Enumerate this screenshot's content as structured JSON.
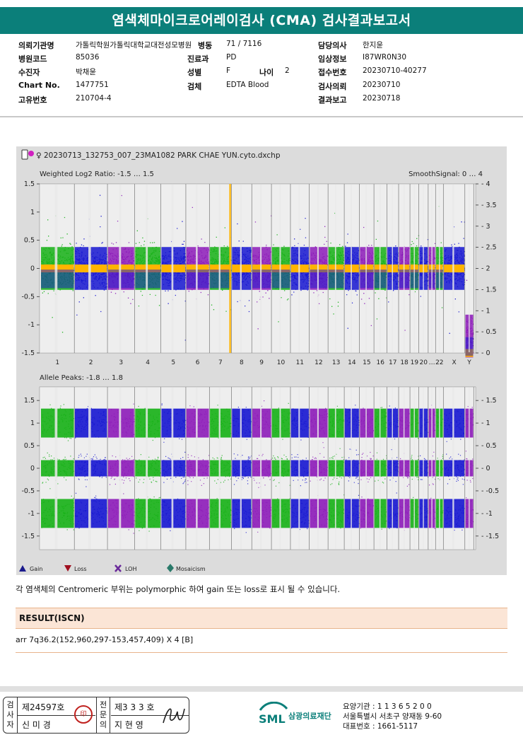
{
  "title": "염색체마이크로어레이검사 (CMA) 검사결과보고서",
  "info": {
    "institution_label": "의뢰기관명",
    "institution_value": "가톨릭학원가톨릭대학교대전성모병원",
    "ward_label": "병동",
    "ward_value": "71 / 7116",
    "doctor_label": "담당의사",
    "doctor_value": "한지윤",
    "hospital_code_label": "병원코드",
    "hospital_code_value": "85036",
    "department_label": "진료과",
    "department_value": "PD",
    "clinical_label": "임상정보",
    "clinical_value": "I87WR0N30",
    "patient_label": "수진자",
    "patient_value": "박채윤",
    "sex_label": "성별",
    "sex_value": "F",
    "age_label": "나이",
    "age_value": "2",
    "receipt_label": "접수번호",
    "receipt_value": "20230710-40277",
    "chart_label": "Chart No.",
    "chart_value": "1477751",
    "specimen_label": "검체",
    "specimen_value": "EDTA Blood",
    "request_label": "검사의뢰",
    "request_value": "20230710",
    "unique_label": "고유번호",
    "unique_value": "210704-4",
    "report_label": "결과보고",
    "report_value": "20230718"
  },
  "chart_header": {
    "filename": "20230713_132753_007_23MA1082 PARK CHAE YUN.cyto.dxchp",
    "sex_symbol": "♀"
  },
  "colors": {
    "green": "#15b015",
    "blue": "#1515d0",
    "purple": "#8c1ab8",
    "orange": "#ffb400",
    "teal": "#0b7f7a"
  },
  "chart_data": [
    {
      "type": "scatter",
      "title": "Weighted Log2 Ratio: -1.5 … 1.5",
      "right_title": "SmoothSignal: 0 … 4",
      "ylim": [
        -1.5,
        1.5
      ],
      "y_ticks": [
        "1.5",
        "1",
        "0.5",
        "0",
        "-0.5",
        "-1",
        "-1.5"
      ],
      "y2lim": [
        0,
        4
      ],
      "y2_ticks": [
        "4",
        "3.5",
        "3",
        "2.5",
        "2",
        "1.5",
        "1",
        "0.5",
        "0"
      ],
      "categories": [
        "1",
        "2",
        "3",
        "4",
        "5",
        "6",
        "7",
        "8",
        "9",
        "10",
        "11",
        "12",
        "13",
        "14",
        "15",
        "16",
        "17",
        "18",
        "19",
        "20",
        "21",
        "22",
        "X",
        "Y"
      ],
      "x_labels": [
        "1",
        "2",
        "3",
        "4",
        "5",
        "6",
        "7",
        "8",
        "9",
        "10",
        "11",
        "12",
        "13",
        "14",
        "15",
        "16",
        "17",
        "18",
        "19",
        "20",
        "…",
        "22",
        "X",
        "Y"
      ],
      "series": [
        {
          "values": [
            0,
            0,
            0,
            0,
            0,
            0,
            0,
            0,
            0,
            0,
            0,
            0,
            0,
            0,
            0,
            0,
            0,
            0,
            0,
            0,
            0,
            0,
            0,
            -1.2
          ]
        }
      ],
      "smooth_signal": [
        2,
        2,
        2,
        2,
        2,
        2,
        2,
        2,
        2,
        2,
        2,
        2,
        2,
        2,
        2,
        2,
        2,
        2,
        2,
        2,
        2,
        2,
        2,
        0
      ],
      "gain_highlight": {
        "chromosome": "7",
        "band": "q36.2",
        "copy_number": 4
      }
    },
    {
      "type": "scatter",
      "title": "Allele Peaks: -1.8 … 1.8",
      "ylim": [
        -1.8,
        1.8
      ],
      "y_ticks": [
        "1.5",
        "1",
        "0.5",
        "0",
        "-0.5",
        "-1",
        "-1.5"
      ],
      "y2_ticks": [
        "1.5",
        "1",
        "0.5",
        "0",
        "-0.5",
        "-1",
        "-1.5"
      ],
      "allele_peaks": [
        1,
        0,
        -1
      ]
    }
  ],
  "legend": [
    {
      "label": "Gain",
      "icon": "triangle-up-icon",
      "color": "#1a1a8c"
    },
    {
      "label": "Loss",
      "icon": "triangle-down-icon",
      "color": "#a01020"
    },
    {
      "label": "LOH",
      "icon": "x-icon",
      "color": "#6a2a9a"
    },
    {
      "label": "Mosaicism",
      "icon": "diamond-icon",
      "color": "#2a7a6a"
    }
  ],
  "note": "각 염색체의 Centromeric 부위는 polymorphic 하여 gain 또는 loss로 표시 될 수 있습니다.",
  "result": {
    "heading": "RESULT(ISCN)",
    "text": "arr 7q36.2(152,960,297-153,457,409) X 4 [B]"
  },
  "footer": {
    "examiner_label": "검사자",
    "examiner_no": "제24597호",
    "examiner_name": "신 미 경",
    "stamp_text": "印",
    "specialist_label": "전문의",
    "specialist_no": "제3 3 3 호",
    "specialist_name": "지 현 영",
    "logo_text": "SML",
    "company": "삼광의료재단",
    "care_code": "요양기관 : 1 1 3 6 5 2 0 0",
    "address": "서울특별시 서초구 양재동 9-60",
    "phone": "대표번호 : 1661-5117"
  }
}
